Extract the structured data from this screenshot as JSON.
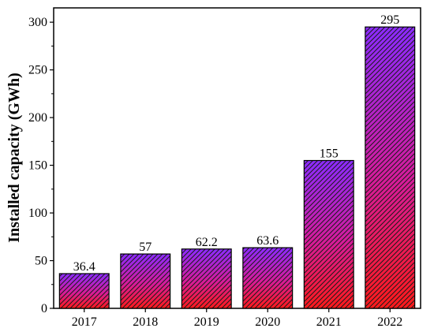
{
  "chart_data": {
    "type": "bar",
    "title": "",
    "xlabel": "",
    "ylabel": "Installed capacity (GWh)",
    "categories": [
      "2017",
      "2018",
      "2019",
      "2020",
      "2021",
      "2022"
    ],
    "values": [
      36.4,
      57,
      62.2,
      63.6,
      155,
      295
    ],
    "value_labels": [
      "36.4",
      "57",
      "62.2",
      "63.6",
      "155",
      "295"
    ],
    "ylim": [
      0,
      315
    ],
    "yticks": [
      0,
      50,
      100,
      150,
      200,
      250,
      300
    ],
    "ytick_labels": [
      "0",
      "50",
      "100",
      "150",
      "200",
      "250",
      "300"
    ],
    "grid": false,
    "legend": "none",
    "bar_fill": {
      "style": "vertical gradient with diagonal hatching",
      "top_color": "#8b2bff",
      "middle_color": "#d81b9a",
      "bottom_color": "#ff1a1a",
      "hatch_color": "#1a1a1a",
      "edge_color": "#000000"
    }
  }
}
